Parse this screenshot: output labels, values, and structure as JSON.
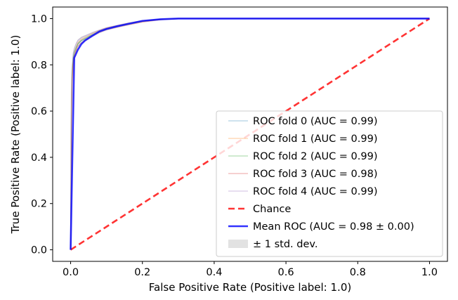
{
  "chart_data": {
    "type": "line",
    "title": "",
    "xlabel": "False Positive Rate (Positive label: 1.0)",
    "ylabel": "True Positive Rate (Positive label: 1.0)",
    "xlim": [
      -0.05,
      1.05
    ],
    "ylim": [
      -0.05,
      1.05
    ],
    "xticks": [
      "0.0",
      "0.2",
      "0.4",
      "0.6",
      "0.8",
      "1.0"
    ],
    "yticks": [
      "0.0",
      "0.2",
      "0.4",
      "0.6",
      "0.8",
      "1.0"
    ],
    "grid": false,
    "legend_position": "lower-right",
    "series": [
      {
        "name": "ROC fold 0 (AUC = 0.99)",
        "color": "#1f77b4",
        "x": [
          0,
          0.002,
          0.004,
          0.007,
          0.01,
          0.015,
          0.02,
          0.03,
          0.045,
          0.06,
          0.08,
          0.1,
          0.13,
          0.16,
          0.2,
          0.25,
          0.3,
          0.4,
          1.0
        ],
        "y": [
          0,
          0.6,
          0.76,
          0.82,
          0.85,
          0.87,
          0.89,
          0.905,
          0.915,
          0.93,
          0.945,
          0.955,
          0.965,
          0.975,
          0.988,
          0.996,
          1.0,
          1.0,
          1.0
        ]
      },
      {
        "name": "ROC fold 1 (AUC = 0.99)",
        "color": "#ff7f0e",
        "x": [
          0,
          0.002,
          0.004,
          0.007,
          0.01,
          0.015,
          0.02,
          0.03,
          0.045,
          0.06,
          0.08,
          0.1,
          0.13,
          0.16,
          0.2,
          0.25,
          0.3,
          0.4,
          1.0
        ],
        "y": [
          0,
          0.58,
          0.74,
          0.81,
          0.84,
          0.87,
          0.895,
          0.91,
          0.922,
          0.935,
          0.948,
          0.96,
          0.97,
          0.98,
          0.99,
          0.997,
          1.0,
          1.0,
          1.0
        ]
      },
      {
        "name": "ROC fold 2 (AUC = 0.99)",
        "color": "#2ca02c",
        "x": [
          0,
          0.002,
          0.004,
          0.007,
          0.01,
          0.015,
          0.02,
          0.03,
          0.045,
          0.06,
          0.08,
          0.1,
          0.13,
          0.16,
          0.2,
          0.25,
          0.3,
          0.4,
          1.0
        ],
        "y": [
          0,
          0.62,
          0.77,
          0.83,
          0.855,
          0.875,
          0.89,
          0.905,
          0.918,
          0.93,
          0.944,
          0.956,
          0.966,
          0.976,
          0.988,
          0.996,
          1.0,
          1.0,
          1.0
        ]
      },
      {
        "name": "ROC fold 3 (AUC = 0.98)",
        "color": "#d62728",
        "x": [
          0,
          0.002,
          0.004,
          0.007,
          0.01,
          0.015,
          0.02,
          0.03,
          0.045,
          0.06,
          0.08,
          0.1,
          0.13,
          0.16,
          0.2,
          0.25,
          0.3,
          0.4,
          1.0
        ],
        "y": [
          0,
          0.55,
          0.72,
          0.8,
          0.83,
          0.86,
          0.88,
          0.895,
          0.91,
          0.925,
          0.94,
          0.952,
          0.963,
          0.973,
          0.985,
          0.995,
          1.0,
          1.0,
          1.0
        ]
      },
      {
        "name": "ROC fold 4 (AUC = 0.99)",
        "color": "#9467bd",
        "x": [
          0,
          0.002,
          0.004,
          0.007,
          0.01,
          0.015,
          0.02,
          0.03,
          0.045,
          0.06,
          0.08,
          0.1,
          0.13,
          0.16,
          0.2,
          0.25,
          0.3,
          0.4,
          1.0
        ],
        "y": [
          0,
          0.65,
          0.79,
          0.85,
          0.87,
          0.89,
          0.905,
          0.918,
          0.928,
          0.938,
          0.95,
          0.96,
          0.97,
          0.98,
          0.99,
          0.997,
          1.0,
          1.0,
          1.0
        ]
      },
      {
        "name": "Chance",
        "color": "#ff0000",
        "style": "dashed",
        "x": [
          0,
          1
        ],
        "y": [
          0,
          1
        ]
      },
      {
        "name": "Mean ROC (AUC = 0.98 ± 0.00)",
        "color": "#0000ff",
        "x": [
          0,
          0.01,
          0.02,
          0.03,
          0.04,
          0.06,
          0.08,
          0.1,
          0.13,
          0.16,
          0.2,
          0.25,
          0.3,
          0.4,
          0.6,
          0.8,
          1.0
        ],
        "y": [
          0,
          0.83,
          0.865,
          0.89,
          0.905,
          0.925,
          0.944,
          0.955,
          0.967,
          0.977,
          0.99,
          0.997,
          1.0,
          1.0,
          1.0,
          1.0,
          1.0
        ]
      }
    ],
    "band": {
      "name": "± 1 std. dev.",
      "color": "#bfbfbf",
      "x": [
        0,
        0.002,
        0.004,
        0.007,
        0.01,
        0.015,
        0.02,
        0.03,
        0.045,
        0.06,
        0.08,
        0.1,
        0.13,
        0.16,
        0.2,
        0.25,
        0.3,
        1.0
      ],
      "upper": [
        0.02,
        0.66,
        0.8,
        0.855,
        0.875,
        0.895,
        0.91,
        0.922,
        0.932,
        0.942,
        0.953,
        0.963,
        0.973,
        0.983,
        0.993,
        0.999,
        1.0,
        1.0
      ],
      "lower": [
        0,
        0.54,
        0.71,
        0.795,
        0.825,
        0.855,
        0.875,
        0.89,
        0.905,
        0.92,
        0.936,
        0.948,
        0.96,
        0.97,
        0.983,
        0.993,
        1.0,
        1.0
      ]
    }
  }
}
